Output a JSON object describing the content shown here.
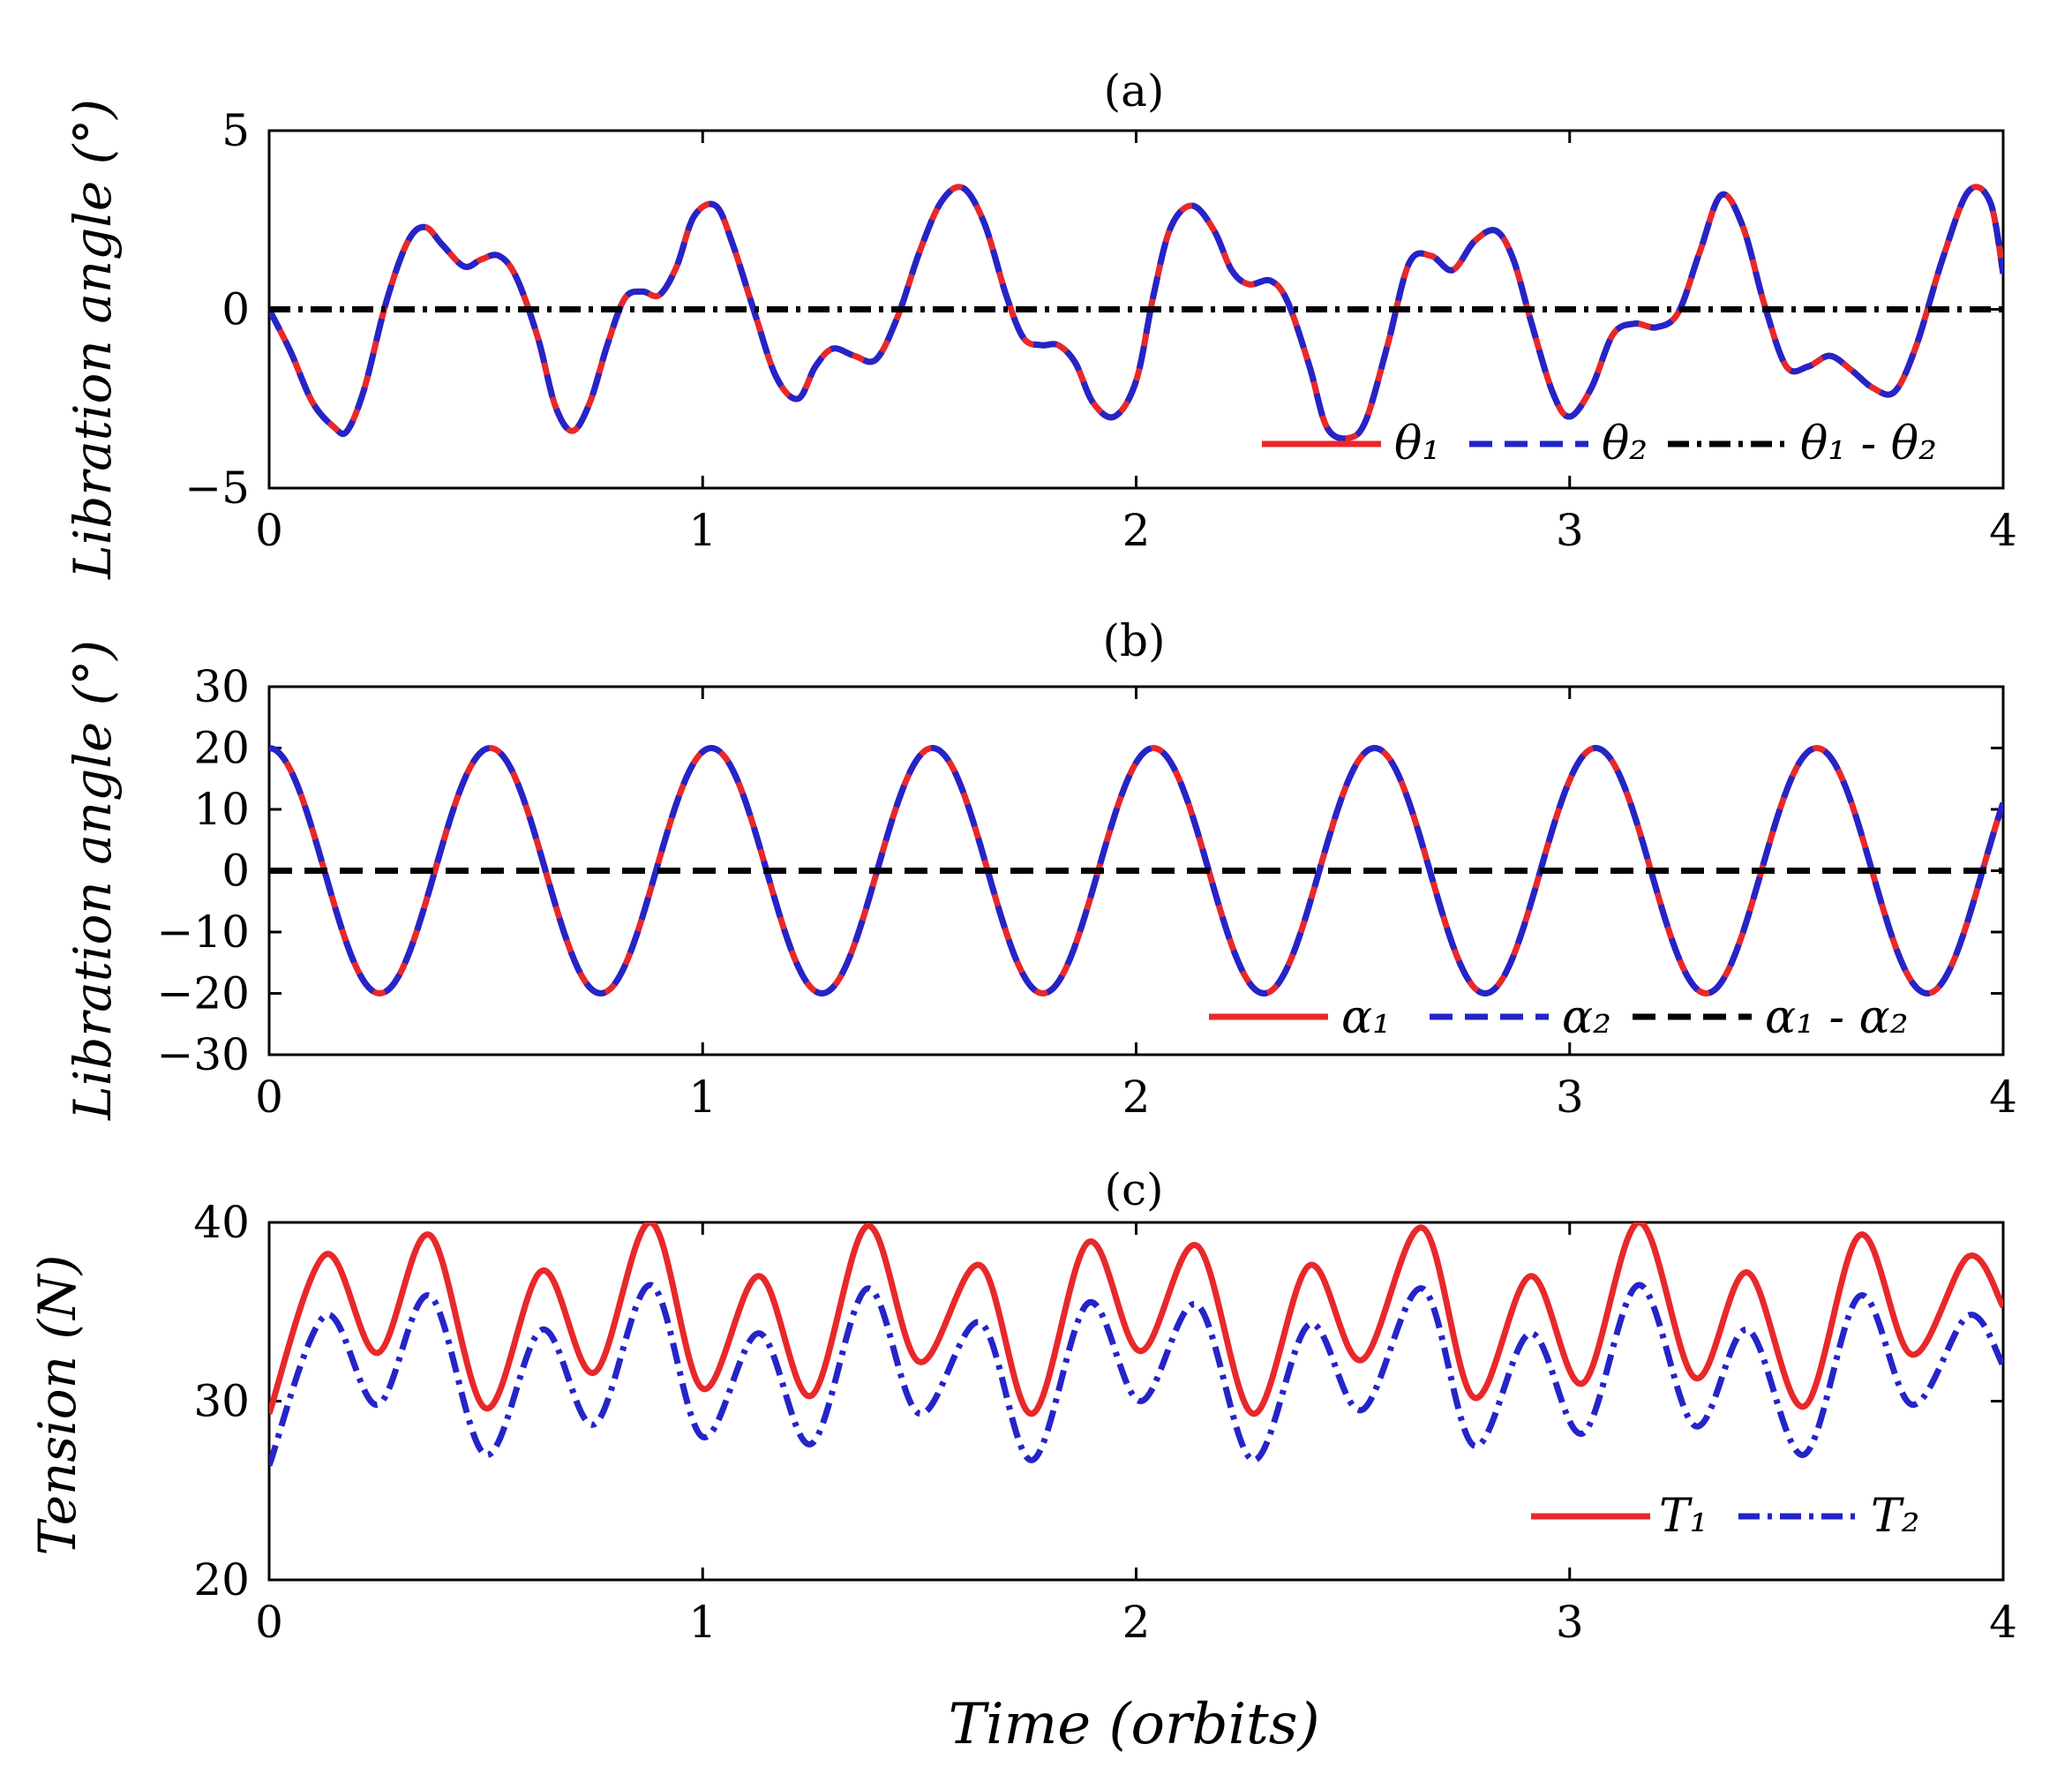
{
  "chart_data": [
    {
      "type": "line",
      "title": "(a)",
      "ylabel": "Libration angle (°)",
      "xlabel": "",
      "xlim": [
        0,
        4
      ],
      "ylim": [
        -5,
        5
      ],
      "xticks": [
        "0",
        "1",
        "2",
        "3",
        "4"
      ],
      "yticks": [
        "5",
        "0",
        "−5"
      ],
      "grid": false,
      "legend_position": "bottom-right",
      "series": [
        {
          "name": "θ₁",
          "color": "#e8282a",
          "style": "solid",
          "x": [
            0,
            0.05,
            0.1,
            0.15,
            0.18,
            0.22,
            0.27,
            0.32,
            0.36,
            0.4,
            0.45,
            0.49,
            0.53,
            0.57,
            0.62,
            0.66,
            0.7,
            0.74,
            0.78,
            0.82,
            0.86,
            0.9,
            0.94,
            0.98,
            1.03,
            1.07,
            1.12,
            1.17,
            1.22,
            1.26,
            1.3,
            1.35,
            1.4,
            1.45,
            1.5,
            1.55,
            1.6,
            1.65,
            1.7,
            1.74,
            1.78,
            1.82,
            1.86,
            1.9,
            1.95,
            2.0,
            2.04,
            2.08,
            2.13,
            2.18,
            2.22,
            2.26,
            2.31,
            2.35,
            2.4,
            2.44,
            2.49,
            2.53,
            2.58,
            2.63,
            2.68,
            2.73,
            2.78,
            2.83,
            2.87,
            2.91,
            2.96,
            3.0,
            3.05,
            3.1,
            3.15,
            3.2,
            3.25,
            3.3,
            3.35,
            3.4,
            3.45,
            3.5,
            3.55,
            3.6,
            3.65,
            3.7,
            3.75,
            3.8,
            3.86,
            3.92,
            3.97,
            4.0
          ],
          "y": [
            0,
            -1.2,
            -2.6,
            -3.3,
            -3.4,
            -2.2,
            0.2,
            1.9,
            2.3,
            1.8,
            1.2,
            1.4,
            1.5,
            0.9,
            -0.8,
            -2.7,
            -3.4,
            -2.6,
            -1.0,
            0.3,
            0.5,
            0.4,
            1.2,
            2.6,
            2.9,
            1.8,
            -0.1,
            -1.9,
            -2.5,
            -1.6,
            -1.1,
            -1.3,
            -1.4,
            -0.2,
            1.6,
            3.0,
            3.4,
            2.4,
            0.4,
            -0.8,
            -1.0,
            -1.0,
            -1.5,
            -2.6,
            -3.0,
            -2.0,
            0.4,
            2.3,
            2.9,
            2.2,
            1.1,
            0.7,
            0.8,
            0.2,
            -1.6,
            -3.3,
            -3.6,
            -3.1,
            -1.0,
            1.3,
            1.5,
            1.1,
            1.9,
            2.2,
            1.4,
            -0.3,
            -2.3,
            -3.0,
            -2.2,
            -0.7,
            -0.4,
            -0.5,
            -0.1,
            1.6,
            3.2,
            2.3,
            0.1,
            -1.6,
            -1.6,
            -1.3,
            -1.7,
            -2.2,
            -2.3,
            -1.0,
            1.4,
            3.3,
            3.0,
            1.0
          ]
        },
        {
          "name": "θ₂",
          "color": "#2424c8",
          "style": "dashed",
          "x": [
            0,
            0.05,
            0.1,
            0.15,
            0.18,
            0.22,
            0.27,
            0.32,
            0.36,
            0.4,
            0.45,
            0.49,
            0.53,
            0.57,
            0.62,
            0.66,
            0.7,
            0.74,
            0.78,
            0.82,
            0.86,
            0.9,
            0.94,
            0.98,
            1.03,
            1.07,
            1.12,
            1.17,
            1.22,
            1.26,
            1.3,
            1.35,
            1.4,
            1.45,
            1.5,
            1.55,
            1.6,
            1.65,
            1.7,
            1.74,
            1.78,
            1.82,
            1.86,
            1.9,
            1.95,
            2.0,
            2.04,
            2.08,
            2.13,
            2.18,
            2.22,
            2.26,
            2.31,
            2.35,
            2.4,
            2.44,
            2.49,
            2.53,
            2.58,
            2.63,
            2.68,
            2.73,
            2.78,
            2.83,
            2.87,
            2.91,
            2.96,
            3.0,
            3.05,
            3.1,
            3.15,
            3.2,
            3.25,
            3.3,
            3.35,
            3.4,
            3.45,
            3.5,
            3.55,
            3.6,
            3.65,
            3.7,
            3.75,
            3.8,
            3.86,
            3.92,
            3.97,
            4.0
          ],
          "y": [
            0,
            -1.2,
            -2.6,
            -3.3,
            -3.4,
            -2.2,
            0.2,
            1.9,
            2.3,
            1.8,
            1.2,
            1.4,
            1.5,
            0.9,
            -0.8,
            -2.7,
            -3.4,
            -2.6,
            -1.0,
            0.3,
            0.5,
            0.4,
            1.2,
            2.6,
            2.9,
            1.8,
            -0.1,
            -1.9,
            -2.5,
            -1.6,
            -1.1,
            -1.3,
            -1.4,
            -0.2,
            1.6,
            3.0,
            3.4,
            2.4,
            0.4,
            -0.8,
            -1.0,
            -1.0,
            -1.5,
            -2.6,
            -3.0,
            -2.0,
            0.4,
            2.3,
            2.9,
            2.2,
            1.1,
            0.7,
            0.8,
            0.2,
            -1.6,
            -3.3,
            -3.6,
            -3.1,
            -1.0,
            1.3,
            1.5,
            1.1,
            1.9,
            2.2,
            1.4,
            -0.3,
            -2.3,
            -3.0,
            -2.2,
            -0.7,
            -0.4,
            -0.5,
            -0.1,
            1.6,
            3.2,
            2.3,
            0.1,
            -1.6,
            -1.6,
            -1.3,
            -1.7,
            -2.2,
            -2.3,
            -1.0,
            1.4,
            3.3,
            3.0,
            1.0
          ]
        },
        {
          "name": "θ₁ - θ₂",
          "color": "#000000",
          "style": "dashdot",
          "x": [
            0,
            4
          ],
          "y": [
            0,
            0
          ]
        }
      ]
    },
    {
      "type": "line",
      "title": "(b)",
      "ylabel": "Libration angle (°)",
      "xlabel": "",
      "xlim": [
        0,
        4
      ],
      "ylim": [
        -30,
        30
      ],
      "xticks": [
        "0",
        "1",
        "2",
        "3",
        "4"
      ],
      "yticks": [
        "30",
        "20",
        "10",
        "0",
        "−10",
        "−20",
        "−30"
      ],
      "grid": false,
      "legend_position": "bottom-right",
      "wave": {
        "amplitude": 20,
        "period": 0.51,
        "phase": "cosine",
        "from": 0,
        "to": 4
      },
      "series": [
        {
          "name": "α₁",
          "color": "#e8282a",
          "style": "solid",
          "x": [
            0,
            0.255,
            0.51,
            0.765,
            1.02,
            1.275,
            1.53,
            1.785,
            2.04,
            2.295,
            2.55,
            2.805,
            3.06,
            3.315,
            3.57,
            3.825,
            4.0
          ],
          "y": [
            20,
            -20,
            20,
            -20,
            20,
            -20,
            20,
            -20,
            20,
            -20,
            20,
            -20,
            20,
            -20,
            20,
            -20,
            10
          ]
        },
        {
          "name": "α₂",
          "color": "#2424c8",
          "style": "dashed",
          "x": [
            0,
            0.255,
            0.51,
            0.765,
            1.02,
            1.275,
            1.53,
            1.785,
            2.04,
            2.295,
            2.55,
            2.805,
            3.06,
            3.315,
            3.57,
            3.825,
            4.0
          ],
          "y": [
            20,
            -20,
            20,
            -20,
            20,
            -20,
            20,
            -20,
            20,
            -20,
            20,
            -20,
            20,
            -20,
            20,
            -20,
            10
          ]
        },
        {
          "name": "α₁ - α₂",
          "color": "#000000",
          "style": "dashed",
          "x": [
            0,
            4
          ],
          "y": [
            0,
            0
          ]
        }
      ]
    },
    {
      "type": "line",
      "title": "(c)",
      "ylabel": "Tension (N)",
      "xlabel": "Time (orbits)",
      "xlim": [
        0,
        4
      ],
      "ylim": [
        20,
        40
      ],
      "xticks": [
        "0",
        "1",
        "2",
        "3",
        "4"
      ],
      "yticks": [
        "40",
        "30",
        "20"
      ],
      "grid": false,
      "legend_position": "bottom-right",
      "series": [
        {
          "name": "T₁",
          "color": "#e8282a",
          "style": "solid",
          "x": [
            0,
            0.13,
            0.25,
            0.37,
            0.5,
            0.63,
            0.75,
            0.88,
            1.0,
            1.13,
            1.25,
            1.38,
            1.5,
            1.64,
            1.76,
            1.89,
            2.01,
            2.14,
            2.27,
            2.4,
            2.52,
            2.66,
            2.78,
            2.91,
            3.03,
            3.16,
            3.29,
            3.41,
            3.54,
            3.67,
            3.79,
            3.92,
            4.0
          ],
          "y": [
            29.3,
            38.2,
            32.7,
            39.3,
            29.6,
            37.3,
            31.6,
            40.0,
            30.7,
            37.0,
            30.3,
            39.8,
            32.2,
            37.6,
            29.3,
            38.9,
            32.8,
            38.7,
            29.3,
            37.6,
            32.3,
            39.7,
            30.2,
            37.0,
            31.0,
            40.0,
            31.3,
            37.2,
            29.7,
            39.3,
            32.6,
            38.1,
            35.3
          ]
        },
        {
          "name": "T₂",
          "color": "#2424c8",
          "style": "dashdot",
          "x": [
            0,
            0.13,
            0.25,
            0.37,
            0.5,
            0.63,
            0.75,
            0.88,
            1.0,
            1.13,
            1.25,
            1.38,
            1.5,
            1.64,
            1.76,
            1.89,
            2.01,
            2.14,
            2.27,
            2.4,
            2.52,
            2.66,
            2.78,
            2.91,
            3.03,
            3.16,
            3.29,
            3.41,
            3.54,
            3.67,
            3.79,
            3.92,
            4.0
          ],
          "y": [
            26.4,
            34.8,
            29.8,
            35.9,
            27.0,
            34.0,
            28.7,
            36.5,
            28.0,
            33.8,
            27.6,
            36.3,
            29.3,
            34.4,
            26.7,
            35.5,
            30.0,
            35.4,
            26.7,
            34.3,
            29.5,
            36.3,
            27.5,
            33.8,
            28.2,
            36.5,
            28.6,
            34.0,
            27.0,
            35.9,
            29.8,
            34.8,
            32.0
          ]
        }
      ]
    }
  ]
}
